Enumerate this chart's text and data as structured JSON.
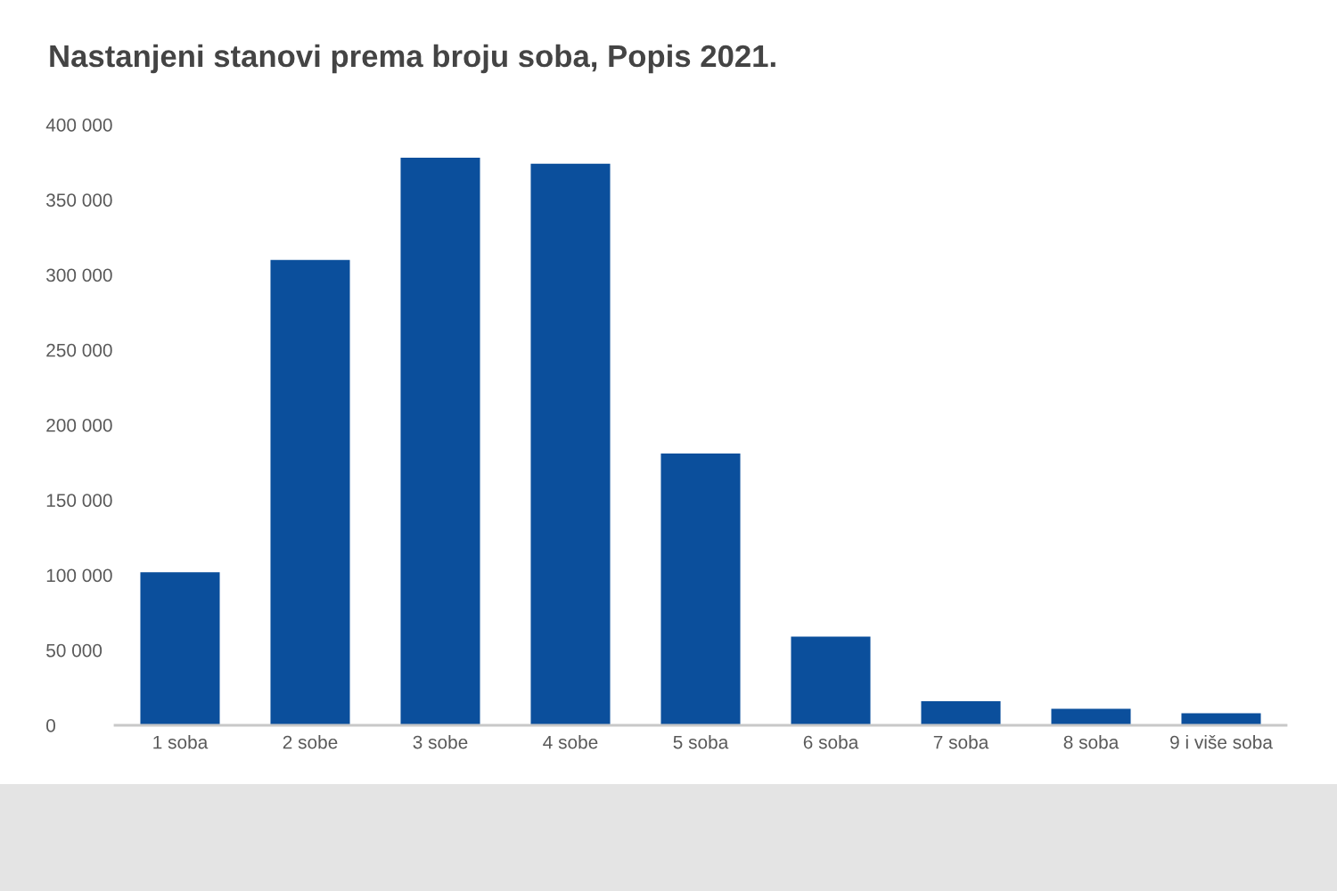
{
  "chart_data": {
    "type": "bar",
    "title": "Nastanjeni stanovi prema broju soba, Popis 2021.",
    "categories": [
      "1 soba",
      "2 sobe",
      "3 sobe",
      "4 sobe",
      "5 soba",
      "6 soba",
      "7 soba",
      "8 soba",
      "9 i više soba"
    ],
    "values": [
      102000,
      310000,
      378000,
      374000,
      181000,
      59000,
      16000,
      11000,
      8000
    ],
    "color": "#0b4f9c",
    "ylim": [
      0,
      400000
    ],
    "yticks": [
      0,
      {
        "value": 50000,
        "label": "50 000"
      },
      {
        "value": 100000,
        "label": "100 000"
      },
      {
        "value": 150000,
        "label": "150 000"
      },
      {
        "value": 200000,
        "label": "200 000"
      },
      {
        "value": 250000,
        "label": "250 000"
      },
      {
        "value": 300000,
        "label": "300 000"
      },
      {
        "value": 350000,
        "label": "350 000"
      },
      {
        "value": 400000,
        "label": "400 000"
      }
    ]
  }
}
